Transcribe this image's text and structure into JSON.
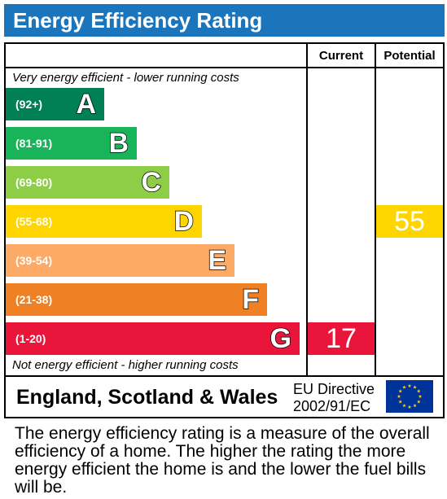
{
  "title": "Energy Efficiency Rating",
  "columns": {
    "current": "Current",
    "potential": "Potential"
  },
  "top_note": "Very energy efficient - lower running costs",
  "bottom_note": "Not energy efficient - higher running costs",
  "chart_data": {
    "type": "bar",
    "categories": [
      "A",
      "B",
      "C",
      "D",
      "E",
      "F",
      "G"
    ],
    "ranges": [
      "(92+)",
      "(81-91)",
      "(69-80)",
      "(55-68)",
      "(39-54)",
      "(21-38)",
      "(1-20)"
    ],
    "colors": [
      "#008054",
      "#19b459",
      "#8dce46",
      "#ffd500",
      "#fcaa65",
      "#ef8023",
      "#e9153b"
    ],
    "current": {
      "value": 17,
      "band": "G"
    },
    "potential": {
      "value": 55,
      "band": "D"
    }
  },
  "footer": {
    "region": "England, Scotland & Wales",
    "directive_line1": "EU Directive",
    "directive_line2": "2002/91/EC",
    "flag_icon": "eu-flag-icon"
  },
  "description": "The energy efficiency rating is a measure of the overall efficiency of a home. The higher the rating the more energy efficient the home is and the lower the fuel bills will be."
}
